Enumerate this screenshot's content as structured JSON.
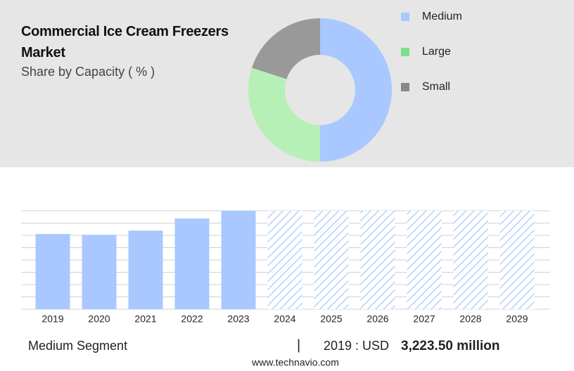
{
  "header": {
    "title": "Commercial Ice Cream Freezers Market",
    "subtitle": "Share by Capacity ( % )"
  },
  "chart_data": [
    {
      "type": "donut",
      "categories": [
        "Medium",
        "Large",
        "Small"
      ],
      "values": [
        50,
        30,
        20
      ],
      "colors": [
        "#a8c8ff",
        "#b6f0b6",
        "#999999"
      ],
      "legend_colors": [
        "#a8c8ff",
        "#7ee08a",
        "#888888"
      ],
      "legend": "right"
    },
    {
      "type": "bar",
      "categories": [
        "2019",
        "2020",
        "2021",
        "2022",
        "2023",
        "2024",
        "2025",
        "2026",
        "2027",
        "2028",
        "2029"
      ],
      "values": [
        3223.5,
        3190,
        3370,
        3890,
        4220,
        null,
        null,
        null,
        null,
        null,
        null
      ],
      "color": "#a8c8ff",
      "ylim": [
        0,
        4220
      ],
      "grid": true
    }
  ],
  "footer": {
    "segment": "Medium Segment",
    "separator": "|",
    "year_label": "2019 : USD",
    "value": "3,223.50 million",
    "source": "www.technavio.com"
  }
}
